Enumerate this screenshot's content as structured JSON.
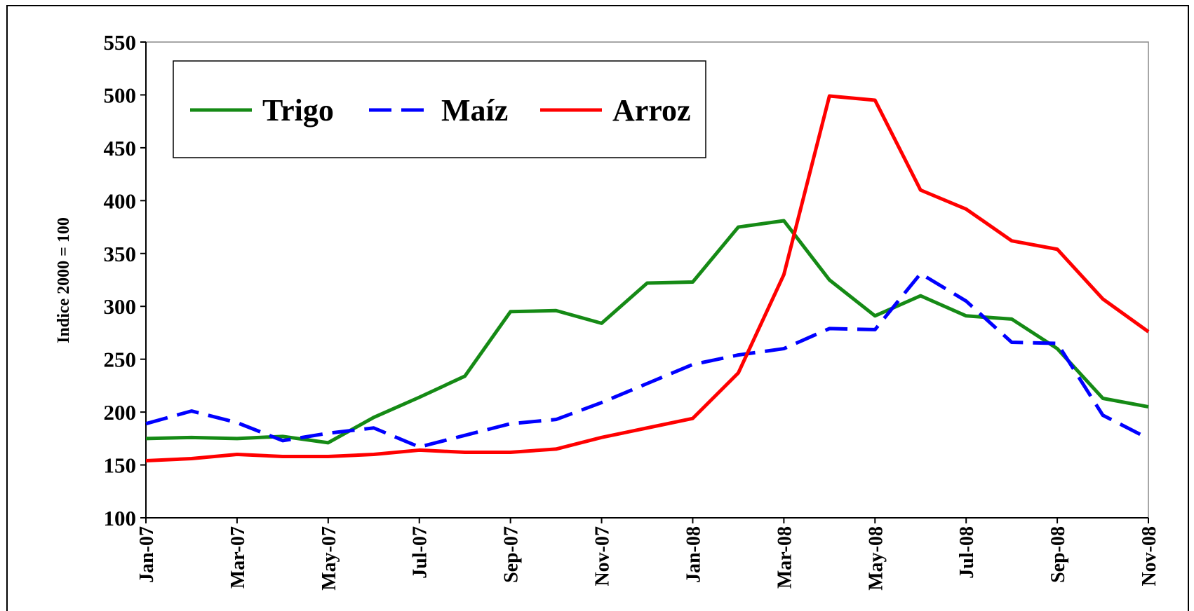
{
  "chart_data": {
    "type": "line",
    "y_label": "Indice 2000 = 100",
    "categories": [
      "Jan-07",
      null,
      "Mar-07",
      null,
      "May-07",
      null,
      "Jul-07",
      null,
      "Sep-07",
      null,
      "Nov-07",
      null,
      "Jan-08",
      null,
      "Mar-08",
      null,
      "May-08",
      null,
      "Jul-08",
      null,
      "Sep-08",
      null,
      "Nov-08"
    ],
    "series": [
      {
        "name": "Trigo",
        "color": "#158a15",
        "dash": false,
        "values": [
          175,
          176,
          175,
          177,
          171,
          195,
          214,
          234,
          295,
          296,
          284,
          322,
          323,
          375,
          381,
          325,
          291,
          310,
          291,
          288,
          260,
          213,
          205
        ]
      },
      {
        "name": "Maíz",
        "color": "#0000ff",
        "dash": true,
        "values": [
          189,
          201,
          190,
          173,
          180,
          185,
          167,
          178,
          189,
          193,
          209,
          227,
          245,
          254,
          260,
          279,
          278,
          331,
          305,
          266,
          265,
          197,
          175
        ]
      },
      {
        "name": "Arroz",
        "color": "#ff0000",
        "dash": false,
        "values": [
          154,
          156,
          160,
          158,
          158,
          160,
          164,
          162,
          162,
          165,
          176,
          185,
          194,
          237,
          330,
          499,
          495,
          410,
          392,
          362,
          354,
          307,
          276
        ]
      }
    ],
    "ylim": [
      100,
      550
    ],
    "yticks": [
      100,
      150,
      200,
      250,
      300,
      350,
      400,
      450,
      500,
      550
    ],
    "legend": "top-left"
  }
}
